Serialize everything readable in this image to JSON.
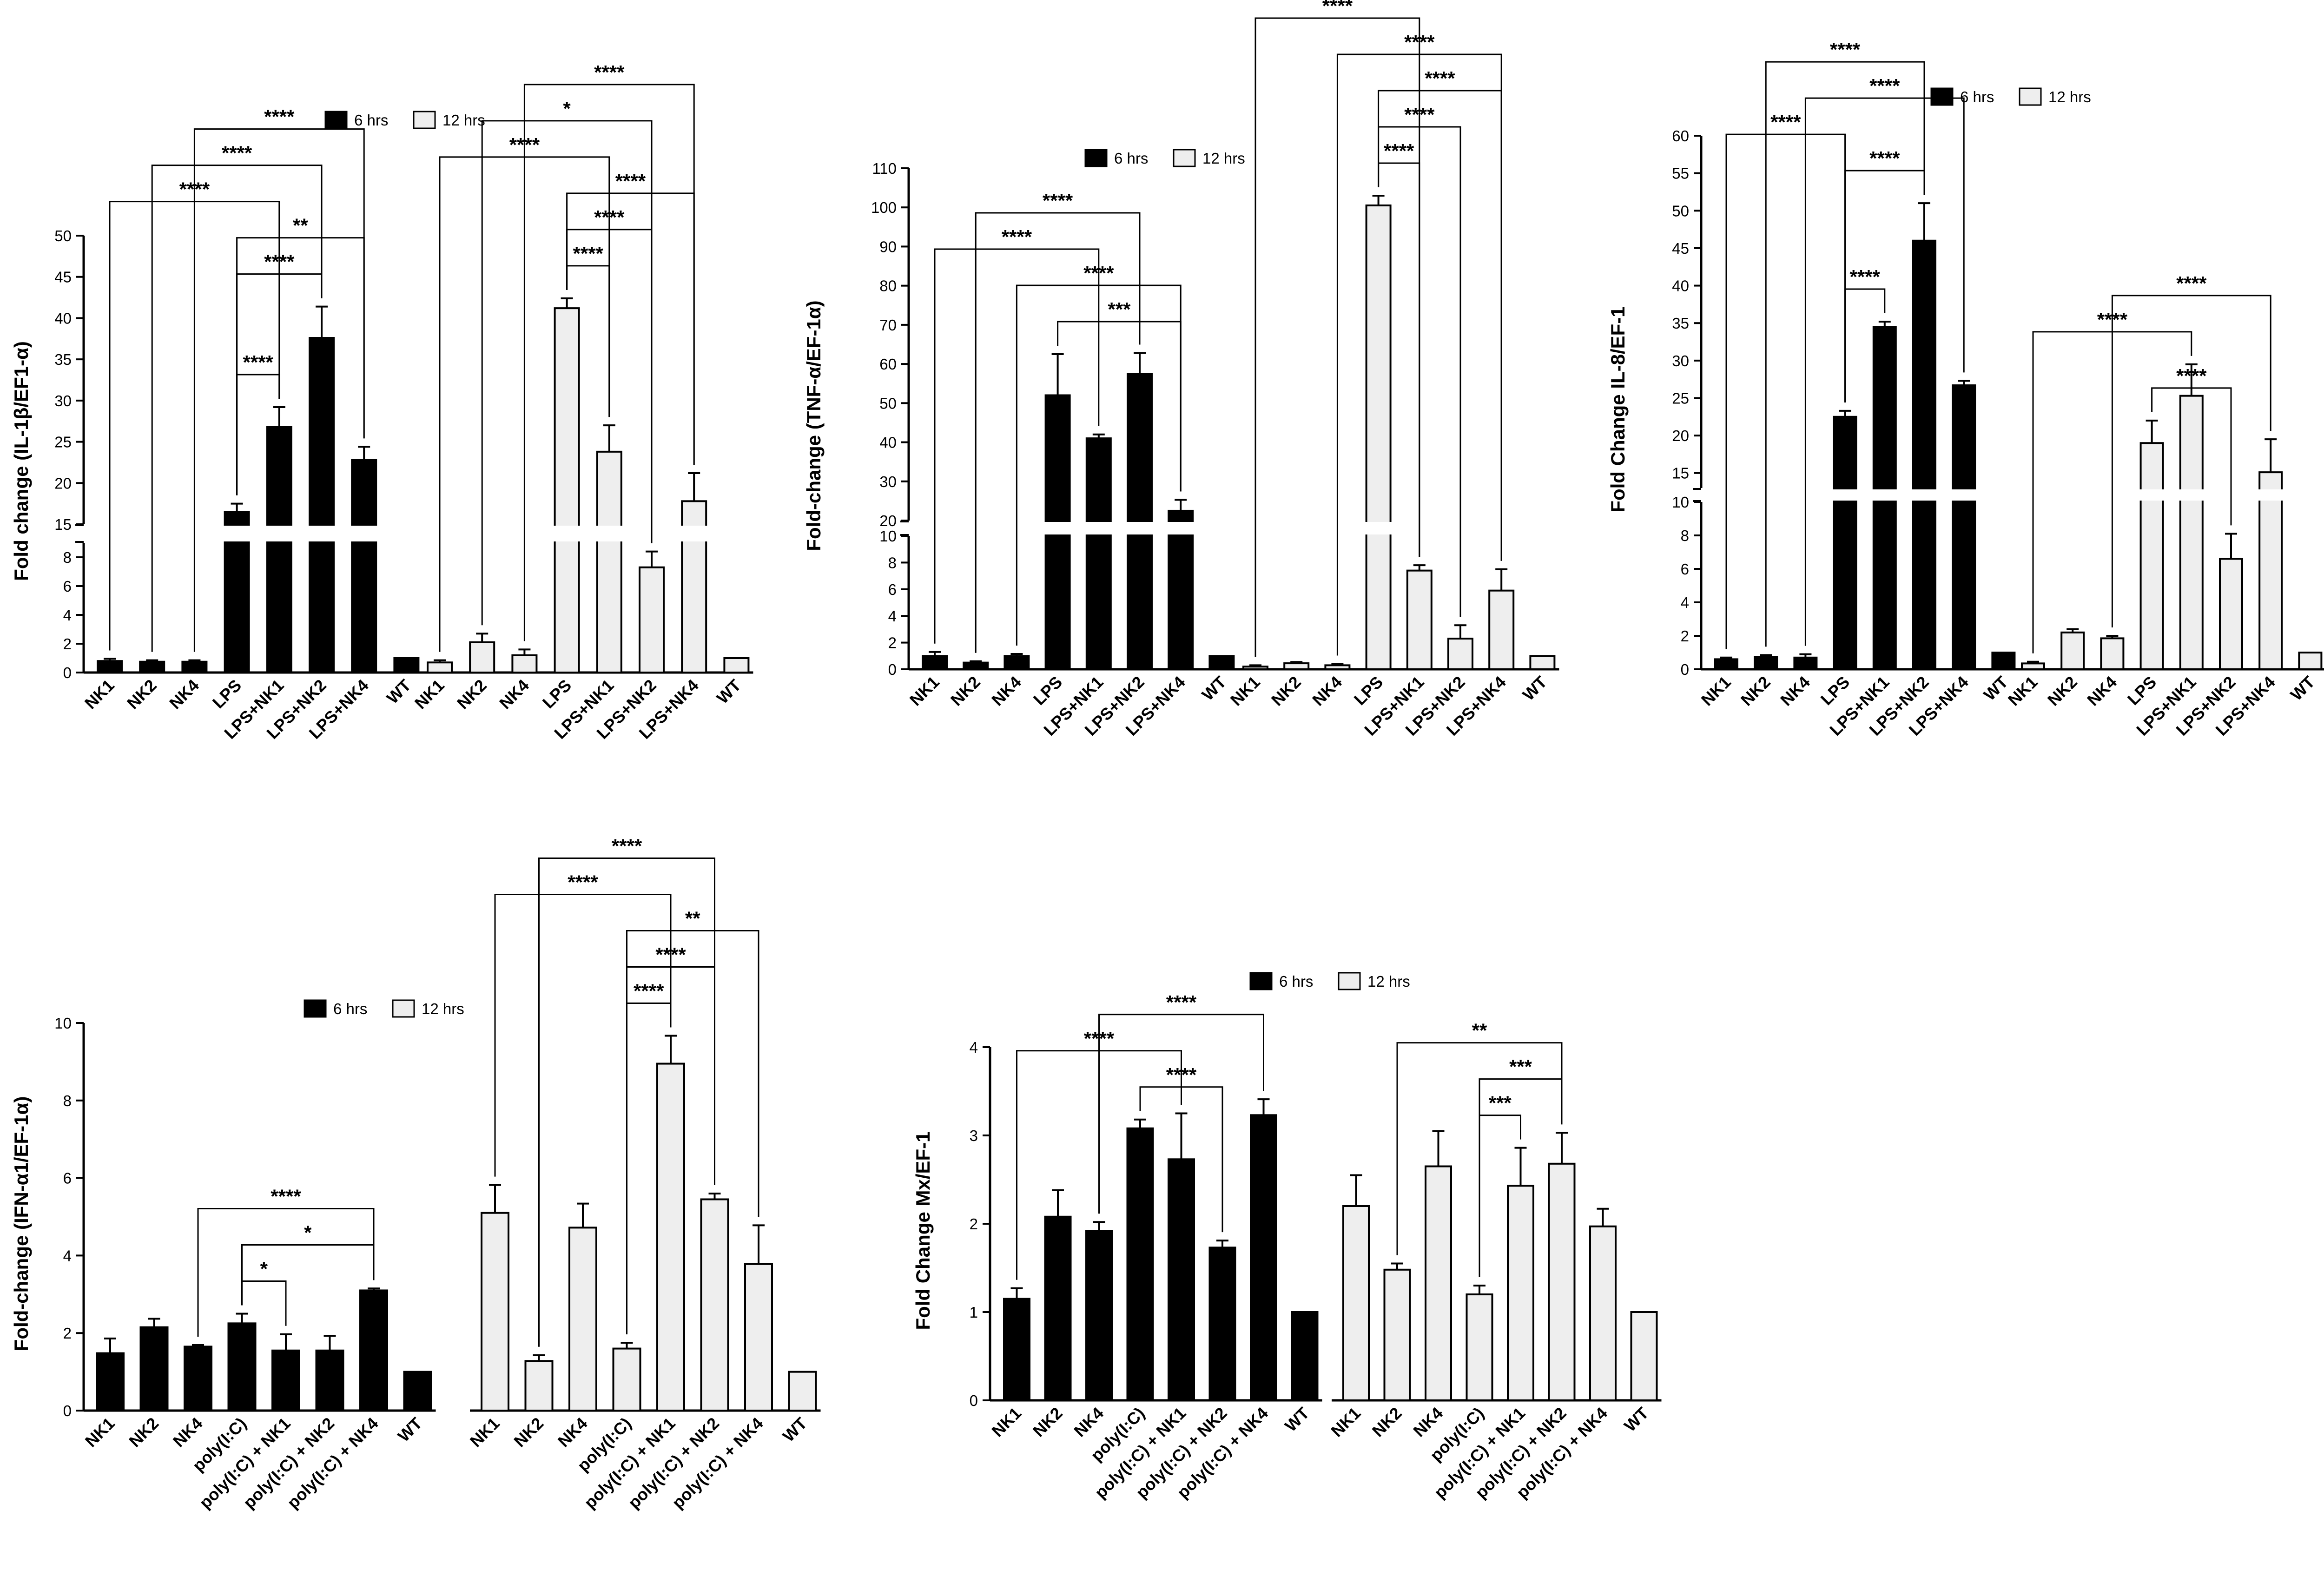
{
  "legend": {
    "series_6": "6 hrs",
    "series_12": "12 hrs"
  },
  "chart_data": [
    {
      "type": "bar",
      "ylabel": "Fold change (IL-1β/EF1-α)",
      "broken_axis": {
        "lower": [
          0,
          9
        ],
        "upper": [
          15,
          50
        ]
      },
      "ticks_lower": [
        0,
        2,
        4,
        6,
        8
      ],
      "ticks_upper": [
        15,
        20,
        25,
        30,
        35,
        40,
        45,
        50
      ],
      "series": [
        {
          "name": "6 hrs",
          "categories": [
            "NK1",
            "NK2",
            "NK4",
            "LPS",
            "LPS+NK1",
            "LPS+NK2",
            "LPS+NK4",
            "WT"
          ],
          "values": [
            0.8,
            0.75,
            0.75,
            16.5,
            26.8,
            37.6,
            22.8,
            1
          ],
          "errors": [
            0.15,
            0.1,
            0.1,
            1,
            2.4,
            3.8,
            1.6,
            0
          ]
        },
        {
          "name": "12 hrs",
          "categories": [
            "NK1",
            "NK2",
            "NK4",
            "LPS",
            "LPS+NK1",
            "LPS+NK2",
            "LPS+NK4",
            "WT"
          ],
          "values": [
            0.7,
            2.1,
            1.2,
            41.2,
            23.8,
            7.3,
            17.8,
            1
          ],
          "errors": [
            0.15,
            0.6,
            0.4,
            1.2,
            3.2,
            1.1,
            3.4,
            0
          ]
        }
      ],
      "significance": [
        {
          "from": "6 hrs:LPS",
          "to": "6 hrs:LPS+NK1",
          "label": "****"
        },
        {
          "from": "6 hrs:NK1",
          "to": "6 hrs:LPS+NK1",
          "label": "****"
        },
        {
          "from": "6 hrs:NK2",
          "to": "6 hrs:LPS+NK2",
          "label": "****"
        },
        {
          "from": "6 hrs:LPS",
          "to": "6 hrs:LPS+NK2",
          "label": "****"
        },
        {
          "from": "6 hrs:LPS",
          "to": "6 hrs:LPS+NK4",
          "label": "**"
        },
        {
          "from": "6 hrs:NK4",
          "to": "6 hrs:LPS+NK4",
          "label": "****"
        },
        {
          "from": "12 hrs:LPS",
          "to": "12 hrs:LPS+NK1",
          "label": "****"
        },
        {
          "from": "12 hrs:NK1",
          "to": "12 hrs:LPS+NK1",
          "label": "****"
        },
        {
          "from": "12 hrs:LPS",
          "to": "12 hrs:LPS+NK2",
          "label": "****"
        },
        {
          "from": "12 hrs:NK2",
          "to": "12 hrs:LPS+NK2",
          "label": "*"
        },
        {
          "from": "12 hrs:LPS",
          "to": "12 hrs:LPS+NK4",
          "label": "****"
        },
        {
          "from": "12 hrs:NK4",
          "to": "12 hrs:LPS+NK4",
          "label": "****"
        }
      ]
    },
    {
      "type": "bar",
      "ylabel": "Fold-change (TNF-α/EF-1α)",
      "broken_axis": {
        "lower": [
          0,
          10
        ],
        "upper": [
          20,
          110
        ]
      },
      "ticks_lower": [
        0,
        2,
        4,
        6,
        8,
        10
      ],
      "ticks_upper": [
        20,
        30,
        40,
        50,
        60,
        70,
        80,
        90,
        100,
        110
      ],
      "series": [
        {
          "name": "6 hrs",
          "categories": [
            "NK1",
            "NK2",
            "NK4",
            "LPS",
            "LPS+NK1",
            "LPS+NK2",
            "LPS+NK4",
            "WT"
          ],
          "values": [
            1,
            0.5,
            1,
            52,
            41,
            57.5,
            22.5,
            1
          ],
          "errors": [
            0.3,
            0.1,
            0.15,
            10.5,
            1,
            5.3,
            2.8,
            0
          ]
        },
        {
          "name": "12 hrs",
          "categories": [
            "NK1",
            "NK2",
            "NK4",
            "LPS",
            "LPS+NK1",
            "LPS+NK2",
            "LPS+NK4",
            "WT"
          ],
          "values": [
            0.2,
            0.45,
            0.3,
            100.5,
            7.4,
            2.3,
            5.9,
            1
          ],
          "errors": [
            0.1,
            0.1,
            0.1,
            2.5,
            0.4,
            1,
            1.6,
            0
          ]
        }
      ],
      "significance": [
        {
          "from": "6 hrs:NK1",
          "to": "6 hrs:LPS+NK1",
          "label": "****"
        },
        {
          "from": "6 hrs:NK2",
          "to": "6 hrs:LPS+NK2",
          "label": "****"
        },
        {
          "from": "6 hrs:LPS",
          "to": "6 hrs:LPS+NK4",
          "label": "***"
        },
        {
          "from": "6 hrs:NK4",
          "to": "6 hrs:LPS+NK4",
          "label": "****"
        },
        {
          "from": "12 hrs:LPS",
          "to": "12 hrs:LPS+NK1",
          "label": "****"
        },
        {
          "from": "12 hrs:LPS",
          "to": "12 hrs:LPS+NK2",
          "label": "****"
        },
        {
          "from": "12 hrs:LPS",
          "to": "12 hrs:LPS+NK4",
          "label": "****"
        },
        {
          "from": "12 hrs:NK4",
          "to": "12 hrs:LPS+NK4",
          "label": "****"
        },
        {
          "from": "12 hrs:NK1",
          "to": "12 hrs:LPS+NK1",
          "label": "****"
        }
      ]
    },
    {
      "type": "bar",
      "ylabel": "Fold Change  IL-8/EF-1",
      "broken_axis": {
        "lower": [
          0,
          10
        ],
        "upper": [
          13,
          60
        ]
      },
      "ticks_lower": [
        0,
        2,
        4,
        6,
        8,
        10
      ],
      "ticks_upper": [
        15,
        20,
        25,
        30,
        35,
        40,
        45,
        50,
        55,
        60
      ],
      "series": [
        {
          "name": "6 hrs",
          "categories": [
            "NK1",
            "NK2",
            "NK4",
            "LPS",
            "LPS+NK1",
            "LPS+NK2",
            "LPS+NK4",
            "WT"
          ],
          "values": [
            0.6,
            0.75,
            0.7,
            22.5,
            34.5,
            46,
            26.7,
            1
          ],
          "errors": [
            0.1,
            0.1,
            0.2,
            0.8,
            0.7,
            5,
            0.6,
            0
          ]
        },
        {
          "name": "12 hrs",
          "categories": [
            "NK1",
            "NK2",
            "NK4",
            "LPS",
            "LPS+NK1",
            "LPS+NK2",
            "LPS+NK4",
            "WT"
          ],
          "values": [
            0.35,
            2.2,
            1.85,
            19,
            25.3,
            6.6,
            15.1,
            1
          ],
          "errors": [
            0.1,
            0.2,
            0.15,
            3,
            4.2,
            1.5,
            4.4,
            0
          ]
        }
      ],
      "significance": [
        {
          "from": "6 hrs:NK1",
          "to": "6 hrs:LPS",
          "label": "****"
        },
        {
          "from": "6 hrs:NK2",
          "to": "6 hrs:LPS+NK2",
          "label": "****"
        },
        {
          "from": "6 hrs:NK4",
          "to": "6 hrs:LPS+NK4",
          "label": "****"
        },
        {
          "from": "6 hrs:LPS",
          "to": "6 hrs:LPS+NK2",
          "label": "****"
        },
        {
          "from": "6 hrs:LPS",
          "to": "6 hrs:LPS+NK1",
          "label": "****"
        },
        {
          "from": "12 hrs:NK1",
          "to": "12 hrs:LPS+NK1",
          "label": "****"
        },
        {
          "from": "12 hrs:NK4",
          "to": "12 hrs:LPS+NK4",
          "label": "****"
        },
        {
          "from": "12 hrs:LPS",
          "to": "12 hrs:LPS+NK2",
          "label": "****"
        }
      ]
    },
    {
      "type": "bar",
      "ylabel": "Fold-change (IFN-α1/EF-1α)",
      "ylim": [
        0,
        10
      ],
      "ticks": [
        0,
        2,
        4,
        6,
        8,
        10
      ],
      "series": [
        {
          "name": "6 hrs",
          "categories": [
            "NK1",
            "NK2",
            "NK4",
            "poly(I:C)",
            "poly(I:C) + NK1",
            "poly(I:C) + NK2",
            "poly(I:C) + NK4",
            "WT"
          ],
          "values": [
            1.48,
            2.15,
            1.65,
            2.25,
            1.55,
            1.55,
            3.1,
            1
          ],
          "errors": [
            0.38,
            0.22,
            0.04,
            0.25,
            0.42,
            0.38,
            0.05,
            0
          ]
        },
        {
          "name": "12 hrs",
          "categories": [
            "NK1",
            "NK2",
            "NK4",
            "poly(I:C)",
            "poly(I:C) + NK1",
            "poly(I:C) + NK2",
            "poly(I:C) + NK4",
            "WT"
          ],
          "values": [
            5.1,
            1.28,
            4.72,
            1.6,
            8.95,
            5.45,
            3.78,
            1
          ],
          "errors": [
            0.72,
            0.15,
            0.62,
            0.15,
            0.72,
            0.15,
            1,
            0
          ]
        }
      ],
      "significance": [
        {
          "from": "6 hrs:poly(I:C)",
          "to": "6 hrs:poly(I:C) + NK1",
          "label": "*"
        },
        {
          "from": "6 hrs:poly(I:C)",
          "to": "6 hrs:poly(I:C) + NK4",
          "label": "*"
        },
        {
          "from": "6 hrs:NK4",
          "to": "6 hrs:poly(I:C) + NK4",
          "label": "****"
        },
        {
          "from": "12 hrs:poly(I:C)",
          "to": "12 hrs:poly(I:C) + NK1",
          "label": "****"
        },
        {
          "from": "12 hrs:poly(I:C)",
          "to": "12 hrs:poly(I:C) + NK2",
          "label": "****"
        },
        {
          "from": "12 hrs:poly(I:C)",
          "to": "12 hrs:poly(I:C) + NK4",
          "label": "**"
        },
        {
          "from": "12 hrs:NK1",
          "to": "12 hrs:poly(I:C) + NK1",
          "label": "****"
        },
        {
          "from": "12 hrs:NK2",
          "to": "12 hrs:poly(I:C) + NK2",
          "label": "****"
        }
      ]
    },
    {
      "type": "bar",
      "ylabel": "Fold Change  Mx/EF-1",
      "ylim": [
        0,
        4
      ],
      "ticks": [
        0,
        1,
        2,
        3,
        4
      ],
      "series": [
        {
          "name": "6 hrs",
          "categories": [
            "NK1",
            "NK2",
            "NK4",
            "poly(I:C)",
            "poly(I:C) + NK1",
            "poly(I:C) + NK2",
            "poly(I:C) + NK4",
            "WT"
          ],
          "values": [
            1.15,
            2.08,
            1.92,
            3.08,
            2.73,
            1.73,
            3.23,
            1
          ],
          "errors": [
            0.12,
            0.3,
            0.1,
            0.1,
            0.52,
            0.08,
            0.18,
            0
          ]
        },
        {
          "name": "12 hrs",
          "categories": [
            "NK1",
            "NK2",
            "NK4",
            "poly(I:C)",
            "poly(I:C) + NK1",
            "poly(I:C) + NK2",
            "poly(I:C) + NK4",
            "WT"
          ],
          "values": [
            2.2,
            1.48,
            2.65,
            1.2,
            2.43,
            2.68,
            1.97,
            1
          ],
          "errors": [
            0.35,
            0.07,
            0.4,
            0.1,
            0.43,
            0.35,
            0.2,
            0
          ]
        }
      ],
      "significance": [
        {
          "from": "6 hrs:NK1",
          "to": "6 hrs:poly(I:C) + NK1",
          "label": "****"
        },
        {
          "from": "6 hrs:poly(I:C)",
          "to": "6 hrs:poly(I:C) + NK2",
          "label": "****"
        },
        {
          "from": "6 hrs:NK4",
          "to": "6 hrs:poly(I:C) + NK4",
          "label": "****"
        },
        {
          "from": "12 hrs:poly(I:C)",
          "to": "12 hrs:poly(I:C) + NK1",
          "label": "***"
        },
        {
          "from": "12 hrs:NK2",
          "to": "12 hrs:poly(I:C) + NK2",
          "label": "**"
        },
        {
          "from": "12 hrs:poly(I:C)",
          "to": "12 hrs:poly(I:C) + NK2",
          "label": "***"
        }
      ]
    }
  ]
}
